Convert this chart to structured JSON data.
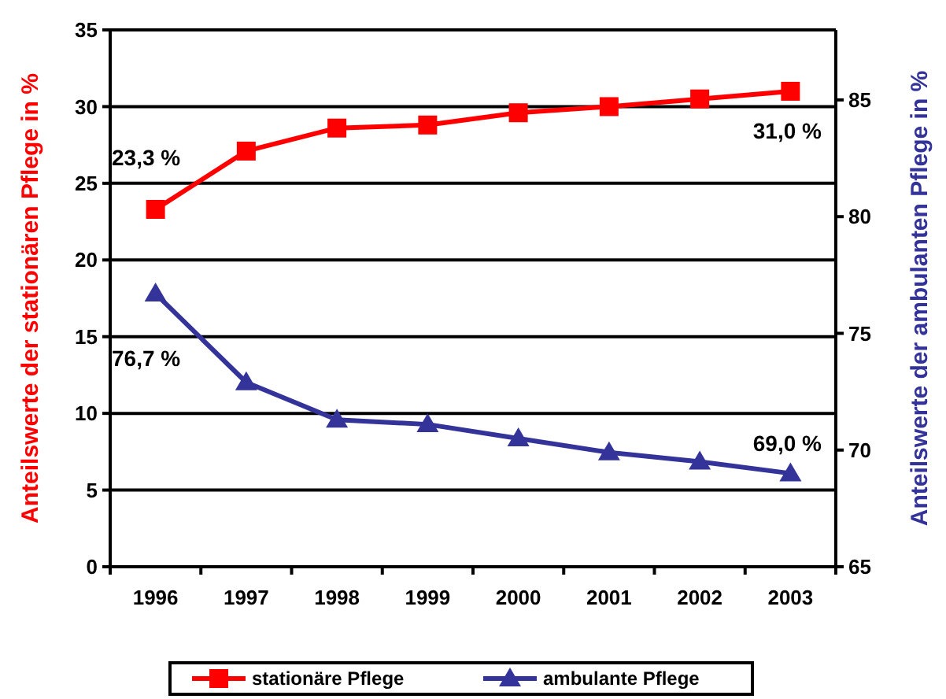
{
  "chart_data": {
    "type": "line",
    "categories": [
      "1996",
      "1997",
      "1998",
      "1999",
      "2000",
      "2001",
      "2002",
      "2003"
    ],
    "ylabel": "Anteilswerte der stationären Pflege in %",
    "y2label": "Anteilswerte der ambulanten Pflege in %",
    "ylim": [
      0,
      35
    ],
    "yticks": [
      0,
      5,
      10,
      15,
      20,
      25,
      30,
      35
    ],
    "y2lim": [
      65,
      88
    ],
    "y2ticks": [
      65,
      70,
      75,
      80,
      85
    ],
    "grid": "y",
    "legend": "bottom",
    "series": [
      {
        "name": "stationäre Pflege",
        "color": "#ff0000",
        "marker": "square",
        "values": [
          23.3,
          27.1,
          28.6,
          28.8,
          29.6,
          30.0,
          30.5,
          31.0
        ],
        "value_labels": [
          "23,3 %",
          null,
          null,
          null,
          null,
          null,
          null,
          "31,0 %"
        ]
      },
      {
        "name": "ambulante Pflege",
        "color": "#333399",
        "marker": "triangle",
        "axis": "y2",
        "values": [
          76.7,
          72.9,
          71.3,
          71.1,
          70.5,
          69.9,
          69.5,
          69.0
        ],
        "value_labels": [
          "76,7 %",
          null,
          null,
          null,
          null,
          null,
          null,
          "69,0 %"
        ]
      }
    ]
  }
}
